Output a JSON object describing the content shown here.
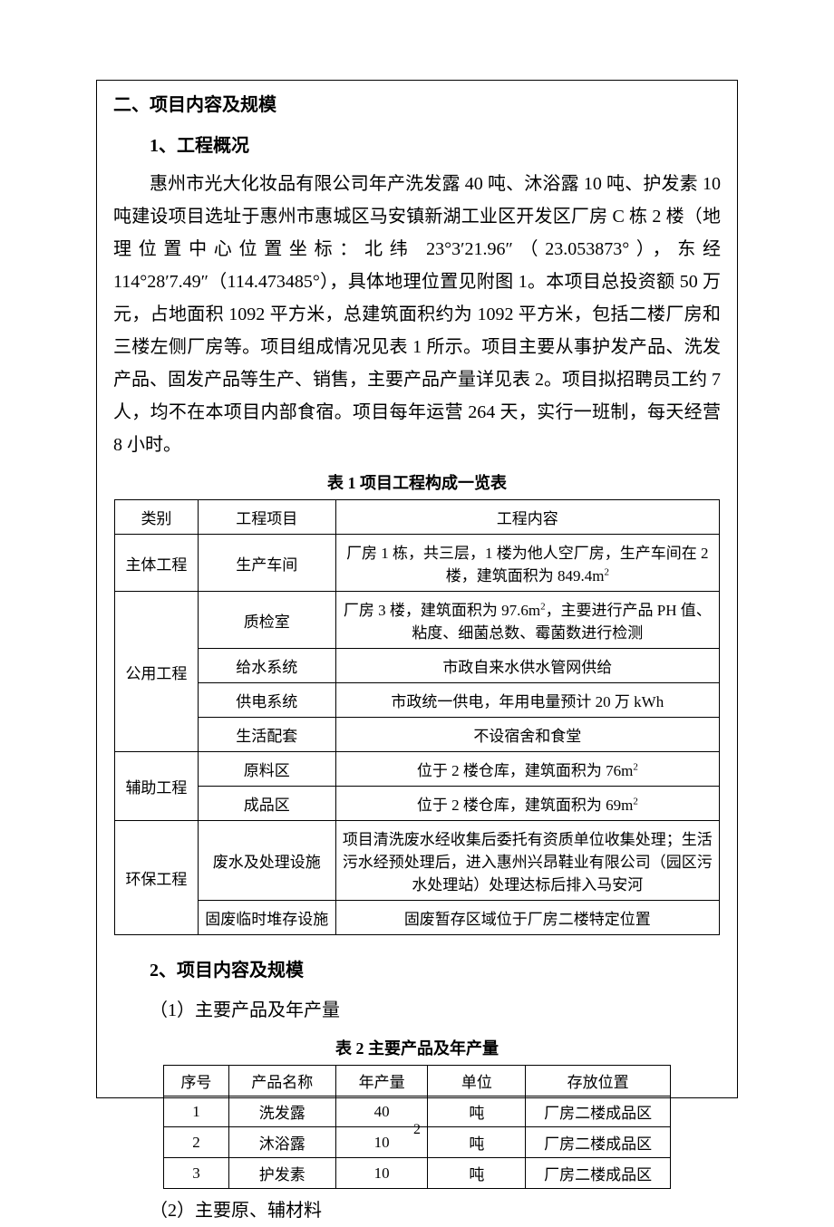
{
  "headings": {
    "section": "二、项目内容及规模",
    "sub1": "1、工程概况",
    "sub2": "2、项目内容及规模",
    "subsub1": "（1）主要产品及年产量",
    "subsub2": "（2）主要原、辅材料"
  },
  "paragraph": "惠州市光大化妆品有限公司年产洗发露 40 吨、沐浴露 10 吨、护发素 10 吨建设项目选址于惠州市惠城区马安镇新湖工业区开发区厂房 C 栋 2 楼（地理位置中心位置坐标：北纬 23°3′21.96″（23.053873°），东经 114°28′7.49″（114.473485°），具体地理位置见附图 1。本项目总投资额 50 万元，占地面积 1092 平方米，总建筑面积约为 1092 平方米，包括二楼厂房和三楼左侧厂房等。项目组成情况见表 1 所示。项目主要从事护发产品、洗发产品、固发产品等生产、销售，主要产品产量详见表 2。项目拟招聘员工约 7 人，均不在本项目内部食宿。项目每年运营 264 天，实行一班制，每天经营 8 小时。",
  "table1": {
    "caption": "表 1  项目工程构成一览表",
    "headers": [
      "类别",
      "工程项目",
      "工程内容"
    ],
    "body": [
      {
        "cat": "主体工程",
        "catRowspan": 1,
        "item": "生产车间",
        "content": "厂房 1 栋，共三层，1 楼为他人空厂房，生产车间在 2 楼，建筑面积为 849.4m²",
        "cls": "row-tall"
      },
      {
        "cat": "公用工程",
        "catRowspan": 4,
        "item": "质检室",
        "content": "厂房 3 楼，建筑面积为 97.6m²，主要进行产品 PH 值、粘度、细菌总数、霉菌数进行检测",
        "cls": "row-tall"
      },
      {
        "item": "给水系统",
        "content": "市政自来水供水管网供给",
        "cls": ""
      },
      {
        "item": "供电系统",
        "content": "市政统一供电，年用电量预计 20 万 kWh",
        "cls": ""
      },
      {
        "item": "生活配套",
        "content": "不设宿舍和食堂",
        "cls": ""
      },
      {
        "cat": "辅助工程",
        "catRowspan": 2,
        "item": "原料区",
        "content": "位于 2 楼仓库，建筑面积为 76m²",
        "cls": ""
      },
      {
        "item": "成品区",
        "content": "位于 2 楼仓库，建筑面积为 69m²",
        "cls": ""
      },
      {
        "cat": "环保工程",
        "catRowspan": 2,
        "item": "废水及处理设施",
        "content": "项目清洗废水经收集后委托有资质单位收集处理；生活污水经预处理后，进入惠州兴昂鞋业有限公司（园区污水处理站）处理达标后排入马安河",
        "cls": "row-tall3"
      },
      {
        "item": "固废临时堆存设施",
        "content": "固废暂存区域位于厂房二楼特定位置",
        "cls": ""
      }
    ]
  },
  "table2": {
    "caption": "表 2   主要产品及年产量",
    "headers": [
      "序号",
      "产品名称",
      "年产量",
      "单位",
      "存放位置"
    ],
    "rows": [
      [
        "1",
        "洗发露",
        "40",
        "吨",
        "厂房二楼成品区"
      ],
      [
        "2",
        "沐浴露",
        "10",
        "吨",
        "厂房二楼成品区"
      ],
      [
        "3",
        "护发素",
        "10",
        "吨",
        "厂房二楼成品区"
      ]
    ]
  },
  "pageNumber": "2"
}
